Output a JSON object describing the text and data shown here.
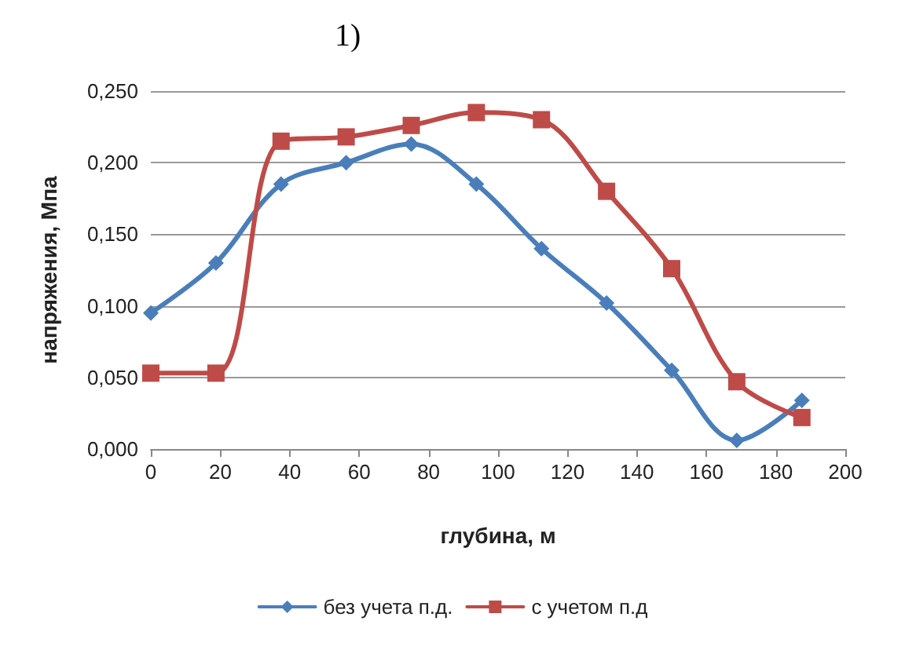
{
  "chart_data": {
    "type": "line",
    "title": "1)",
    "xlabel": "глубина, м",
    "ylabel": "напряжения, Мпа",
    "x": [
      0,
      18.75,
      37.5,
      56.25,
      75,
      93.75,
      112.5,
      131.25,
      150,
      168.75,
      187.5
    ],
    "series": [
      {
        "name": "без учета п.д.",
        "color": "#4a7ebb",
        "marker": "diamond",
        "values": [
          0.095,
          0.13,
          0.185,
          0.2,
          0.213,
          0.185,
          0.14,
          0.102,
          0.055,
          0.006,
          0.034
        ]
      },
      {
        "name": "с учетом п.д",
        "color": "#be4b48",
        "marker": "square",
        "values": [
          0.053,
          0.053,
          0.215,
          0.218,
          0.226,
          0.235,
          0.23,
          0.18,
          0.126,
          0.047,
          0.022
        ]
      }
    ],
    "xlim": [
      0,
      200
    ],
    "xticks": [
      0,
      20,
      40,
      60,
      80,
      100,
      120,
      140,
      160,
      180,
      200
    ],
    "ylim": [
      0,
      0.25
    ],
    "yticks": [
      {
        "value": 0,
        "label": "0,000"
      },
      {
        "value": 0.05,
        "label": "0,050"
      },
      {
        "value": 0.1,
        "label": "0,100"
      },
      {
        "value": 0.15,
        "label": "0,150"
      },
      {
        "value": 0.2,
        "label": "0,200"
      },
      {
        "value": 0.25,
        "label": "0,250"
      }
    ],
    "grid": "y",
    "legend": "bottom",
    "line_style": "solid"
  }
}
